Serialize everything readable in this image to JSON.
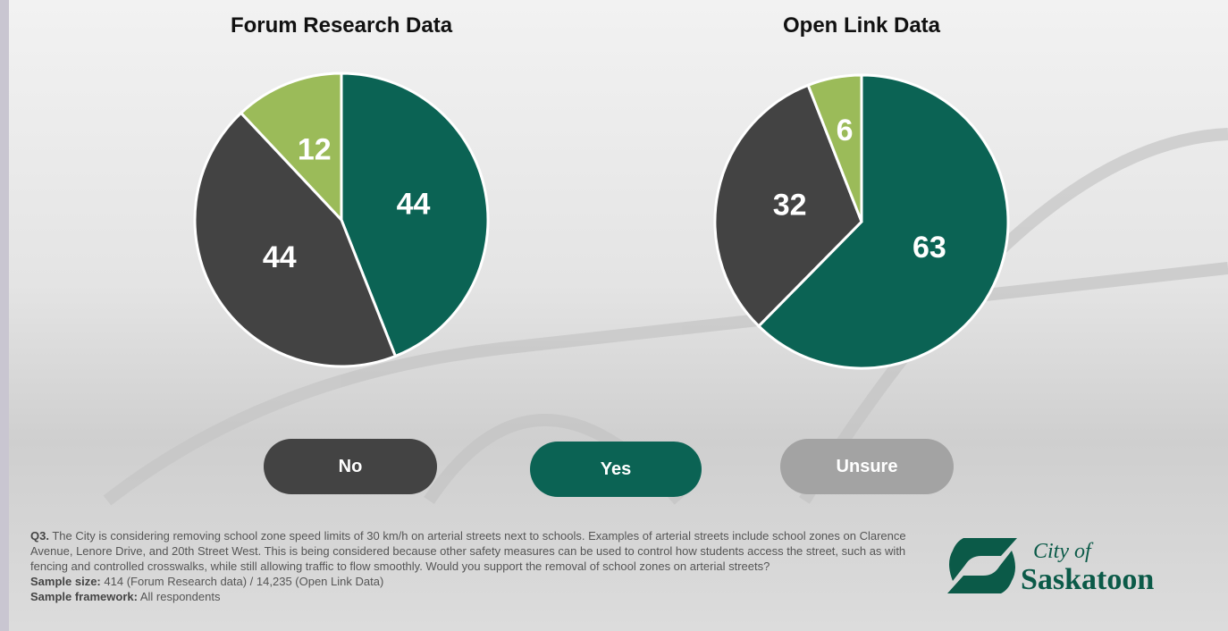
{
  "chart_data": [
    {
      "type": "pie",
      "title": "Forum Research Data",
      "values": [
        44,
        44,
        12
      ],
      "colors": [
        "#0b6354",
        "#434343",
        "#9bbb59"
      ]
    },
    {
      "type": "pie",
      "title": "Open Link Data",
      "values": [
        63,
        32,
        6
      ],
      "colors": [
        "#0b6354",
        "#434343",
        "#9bbb59"
      ]
    }
  ],
  "legend": {
    "items": [
      {
        "label": "No",
        "color": "#434343"
      },
      {
        "label": "Yes",
        "color": "#0b6354"
      },
      {
        "label": "Unsure",
        "color": "#a3a3a3"
      }
    ]
  },
  "footnote": {
    "question": {
      "label": "Q3.",
      "text": "The City is considering removing school zone speed limits of 30 km/h on arterial streets next to schools. Examples of arterial streets include school zones on Clarence Avenue, Lenore Drive, and 20th Street West. This is being considered because other safety measures can be used to control how students access the street, such as with fencing and controlled crosswalks, while still allowing traffic to flow smoothly. Would you support the removal of school zones on arterial streets?"
    },
    "sample_size": {
      "label": "Sample size:",
      "text": "414 (Forum Research data) /  14,235 (Open Link Data)"
    },
    "sample_framework": {
      "label": "Sample framework:",
      "text": "All respondents"
    }
  },
  "logo": {
    "line1": "City of",
    "line2": "Saskatoon"
  }
}
